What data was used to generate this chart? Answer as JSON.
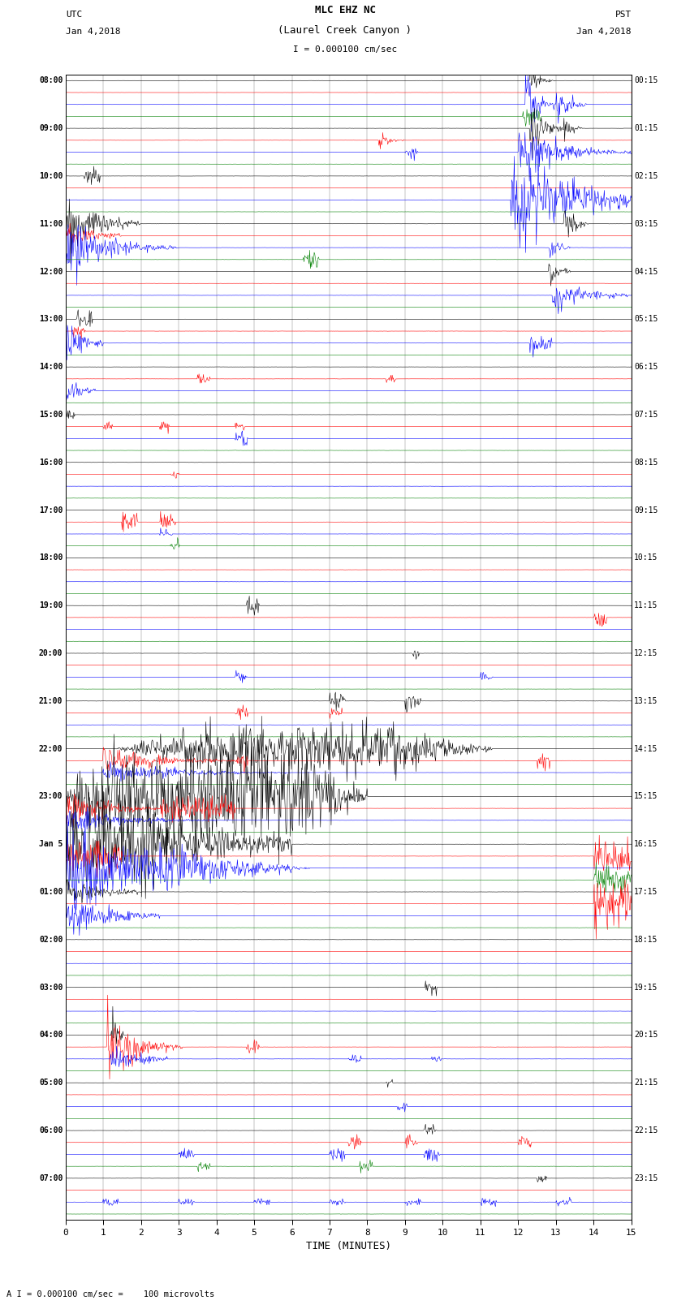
{
  "title_line1": "MLC EHZ NC",
  "title_line2": "(Laurel Creek Canyon )",
  "scale_label": "I = 0.000100 cm/sec",
  "left_label": "UTC",
  "left_date": "Jan 4,2018",
  "right_label": "PST",
  "right_date": "Jan 4,2018",
  "bottom_label": "TIME (MINUTES)",
  "caption": "A I = 0.000100 cm/sec =    100 microvolts",
  "xlabel_ticks": [
    0,
    1,
    2,
    3,
    4,
    5,
    6,
    7,
    8,
    9,
    10,
    11,
    12,
    13,
    14,
    15
  ],
  "bg_color": "#ffffff",
  "trace_colors": [
    "black",
    "red",
    "blue",
    "green"
  ],
  "utc_times": [
    "08:00",
    "",
    "",
    "",
    "09:00",
    "",
    "",
    "",
    "10:00",
    "",
    "",
    "",
    "11:00",
    "",
    "",
    "",
    "12:00",
    "",
    "",
    "",
    "13:00",
    "",
    "",
    "",
    "14:00",
    "",
    "",
    "",
    "15:00",
    "",
    "",
    "",
    "16:00",
    "",
    "",
    "",
    "17:00",
    "",
    "",
    "",
    "18:00",
    "",
    "",
    "",
    "19:00",
    "",
    "",
    "",
    "20:00",
    "",
    "",
    "",
    "21:00",
    "",
    "",
    "",
    "22:00",
    "",
    "",
    "",
    "23:00",
    "",
    "",
    "",
    "Jan 5",
    "",
    "",
    "",
    "01:00",
    "",
    "",
    "",
    "02:00",
    "",
    "",
    "",
    "03:00",
    "",
    "",
    "",
    "04:00",
    "",
    "",
    "",
    "05:00",
    "",
    "",
    "",
    "06:00",
    "",
    "",
    "",
    "07:00",
    "",
    "",
    ""
  ],
  "pst_times": [
    "00:15",
    "",
    "",
    "",
    "01:15",
    "",
    "",
    "",
    "02:15",
    "",
    "",
    "",
    "03:15",
    "",
    "",
    "",
    "04:15",
    "",
    "",
    "",
    "05:15",
    "",
    "",
    "",
    "06:15",
    "",
    "",
    "",
    "07:15",
    "",
    "",
    "",
    "08:15",
    "",
    "",
    "",
    "09:15",
    "",
    "",
    "",
    "10:15",
    "",
    "",
    "",
    "11:15",
    "",
    "",
    "",
    "12:15",
    "",
    "",
    "",
    "13:15",
    "",
    "",
    "",
    "14:15",
    "",
    "",
    "",
    "15:15",
    "",
    "",
    "",
    "16:15",
    "",
    "",
    "",
    "17:15",
    "",
    "",
    "",
    "18:15",
    "",
    "",
    "",
    "19:15",
    "",
    "",
    "",
    "20:15",
    "",
    "",
    "",
    "21:15",
    "",
    "",
    "",
    "22:15",
    "",
    "",
    "",
    "23:15",
    "",
    "",
    ""
  ],
  "n_rows": 96,
  "n_samples": 900,
  "figsize": [
    8.5,
    16.13
  ],
  "dpi": 100,
  "noise_amp": 0.055,
  "row_scale": 0.42
}
